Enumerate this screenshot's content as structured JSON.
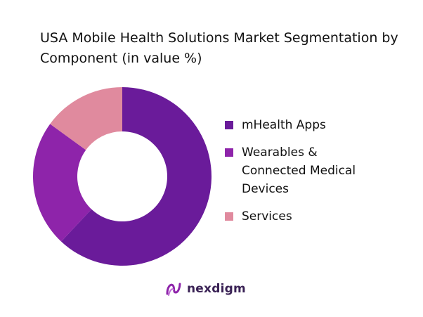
{
  "chart_data": {
    "type": "pie",
    "title": "USA Mobile Health Solutions Market Segmentation by Component (in value %)",
    "donut": true,
    "slices": [
      {
        "label": "mHealth Apps",
        "value": 62,
        "color": "#6a1b9a"
      },
      {
        "label": "Wearables & Connected Medical Devices",
        "value": 23,
        "color": "#8e24aa"
      },
      {
        "label": "Services",
        "value": 15,
        "color": "#e08a9e"
      }
    ],
    "legend_position": "right"
  },
  "legend_lines": [
    [
      "mHealth Apps"
    ],
    [
      "Wearables &",
      "Connected Medical",
      "Devices"
    ],
    [
      "Services"
    ]
  ],
  "brand": {
    "name": "nexdigm",
    "icon": "nexdigm-logo-icon",
    "color": "#3a2255"
  }
}
